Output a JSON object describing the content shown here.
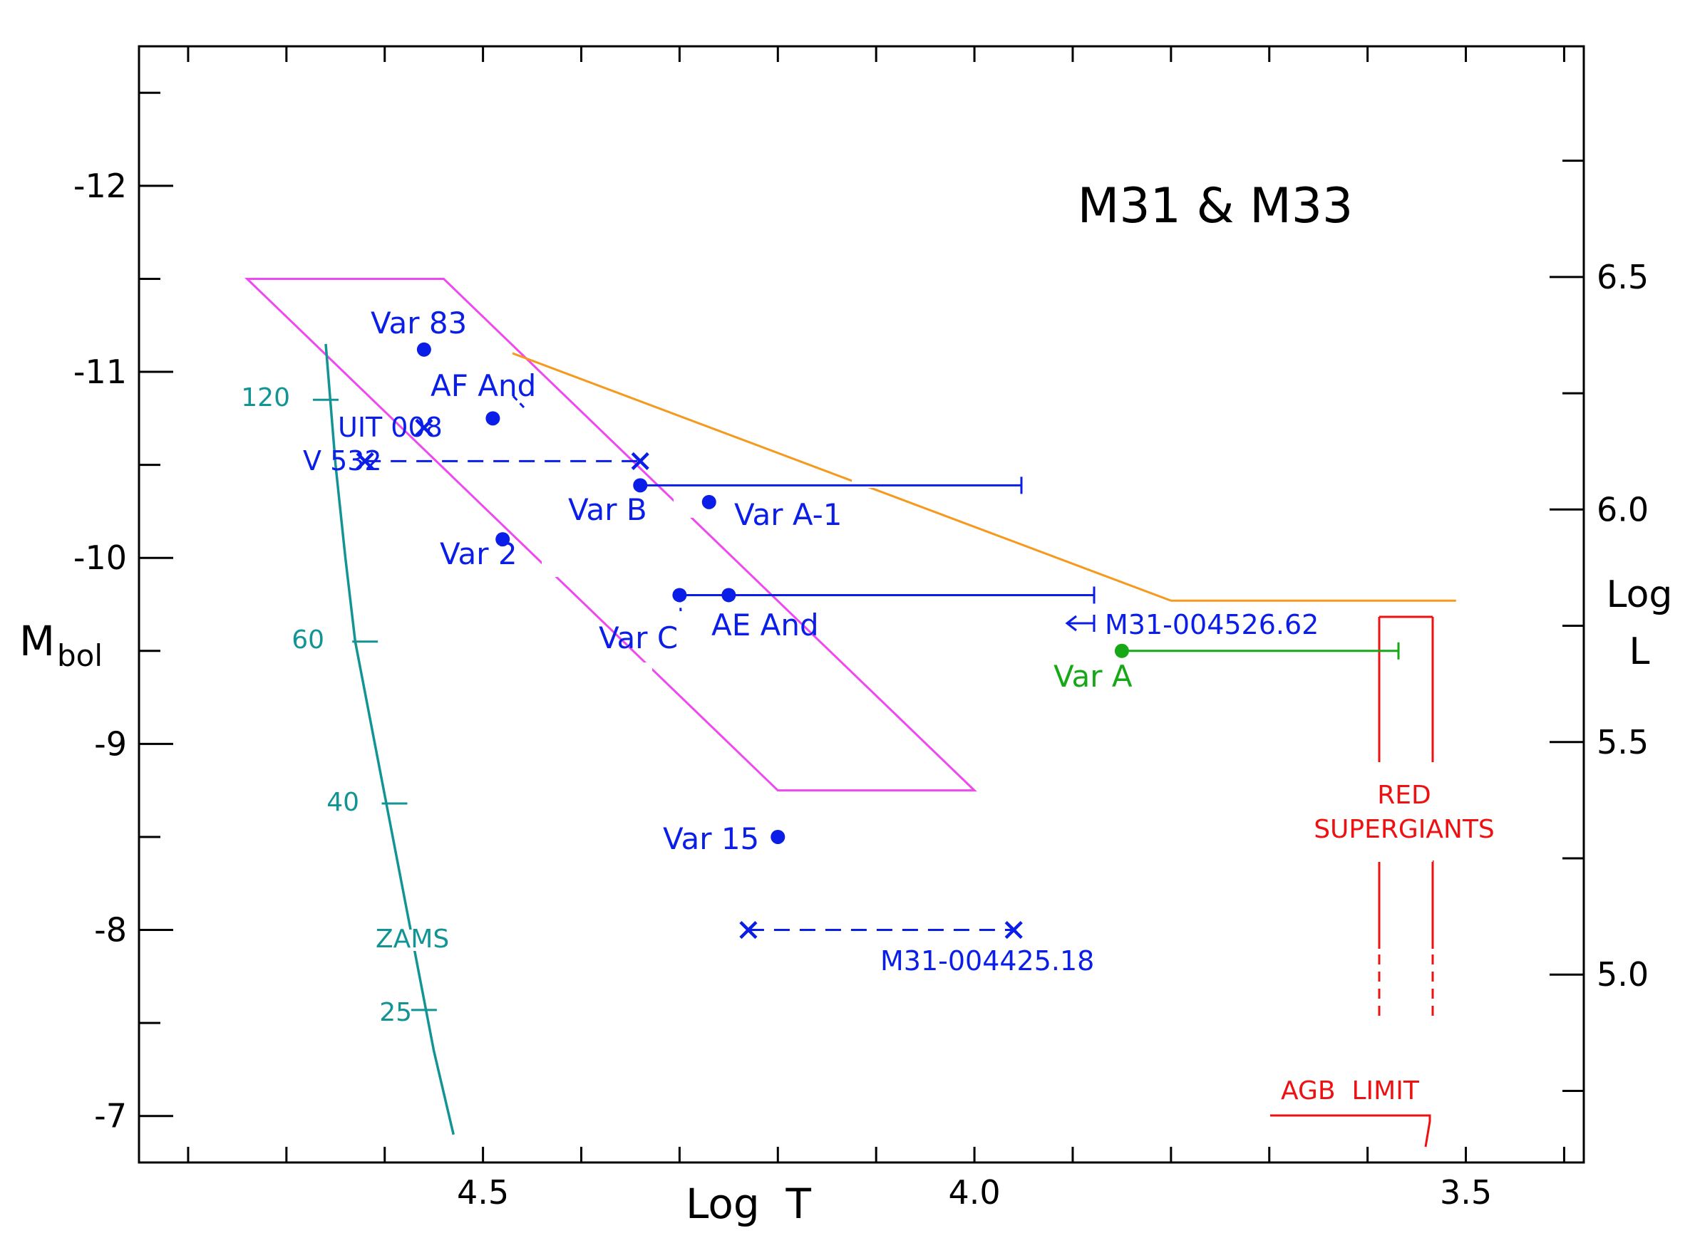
{
  "chart_data": {
    "type": "scatter",
    "title": "M31 & M33",
    "xlabel": "Log  T",
    "ylabel_main": "M",
    "ylabel_sub": "bol",
    "y2label_line1": "Log",
    "y2label_line2": "L",
    "xlim": [
      4.85,
      3.38
    ],
    "ylim": [
      -6.75,
      -12.75
    ],
    "x_ticks": [
      4.5,
      4.0,
      3.5
    ],
    "x_tick_labels": [
      "4.5",
      "4.0",
      "3.5"
    ],
    "y_ticks": [
      -12,
      -11,
      -10,
      -9,
      -8,
      -7
    ],
    "y_tick_labels": [
      "-12",
      "-11",
      "-10",
      "-9",
      "-8",
      "-7"
    ],
    "y2_ticks": [
      6.5,
      6.0,
      5.5,
      5.0
    ],
    "y2_tick_labels": [
      "6.5",
      "6.0",
      "5.5",
      "5.0"
    ],
    "colors": {
      "stars": "#0a1ee8",
      "var_a": "#16a816",
      "zams": "#139494",
      "box": "#f048f0",
      "limit": "#f59a1e",
      "rsg": "#ee1111",
      "axis": "#000000"
    },
    "stars": [
      {
        "label": "Var 83",
        "logT": 4.56,
        "mbol": -11.12,
        "marker": "dot"
      },
      {
        "label": "AF And",
        "logT": 4.49,
        "mbol": -10.75,
        "marker": "dot"
      },
      {
        "label": "UIT 008",
        "logT": 4.56,
        "mbol": -10.7,
        "marker": "x"
      },
      {
        "label": "Var B",
        "logT": 4.34,
        "mbol": -10.39,
        "marker": "dot"
      },
      {
        "label": "Var A-1",
        "logT": 4.27,
        "mbol": -10.3,
        "marker": "dot"
      },
      {
        "label": "Var 2",
        "logT": 4.48,
        "mbol": -10.1,
        "marker": "dot"
      },
      {
        "label": "Var C",
        "logT": 4.3,
        "mbol": -9.8,
        "marker": "dot"
      },
      {
        "label": "AE And",
        "logT": 4.25,
        "mbol": -9.8,
        "marker": "dot"
      },
      {
        "label": "Var A",
        "logT": 3.85,
        "mbol": -9.5,
        "marker": "dot"
      },
      {
        "label": "Var 15",
        "logT": 4.2,
        "mbol": -8.5,
        "marker": "dot"
      }
    ],
    "ranges": [
      {
        "label": "V 532",
        "from_logT": 4.34,
        "to_logT": 4.62,
        "mbol": -10.52
      },
      {
        "label": "M31-004425.18",
        "from_logT": 4.23,
        "to_logT": 3.96,
        "mbol": -8.0
      }
    ],
    "upper_limit_label": "M31-004526.62",
    "zams": {
      "label": "ZAMS",
      "points": [
        [
          4.66,
          -11.15
        ],
        [
          4.65,
          -10.5
        ],
        [
          4.64,
          -10.0
        ],
        [
          4.63,
          -9.55
        ],
        [
          4.61,
          -9.0
        ],
        [
          4.59,
          -8.45
        ],
        [
          4.57,
          -7.9
        ],
        [
          4.55,
          -7.35
        ],
        [
          4.53,
          -6.9
        ]
      ],
      "masses": [
        {
          "label": "120",
          "logT": 4.66,
          "mbol": -10.85
        },
        {
          "label": "60",
          "logT": 4.62,
          "mbol": -9.55
        },
        {
          "label": "40",
          "logT": 4.59,
          "mbol": -8.68
        },
        {
          "label": "25",
          "logT": 4.56,
          "mbol": -7.57
        }
      ]
    },
    "instability_region": {
      "polygon": [
        [
          4.74,
          -11.5
        ],
        [
          4.54,
          -11.5
        ],
        [
          4.0,
          -8.75
        ],
        [
          4.2,
          -8.75
        ]
      ]
    },
    "luminosity_limit": {
      "points": [
        [
          4.47,
          -11.1
        ],
        [
          3.8,
          -9.77
        ],
        [
          3.51,
          -9.77
        ]
      ]
    },
    "red_supergiants": {
      "label_line1": "RED",
      "label_line2": "SUPERGIANTS"
    },
    "agb_limit": {
      "label": "AGB  LIMIT"
    }
  }
}
